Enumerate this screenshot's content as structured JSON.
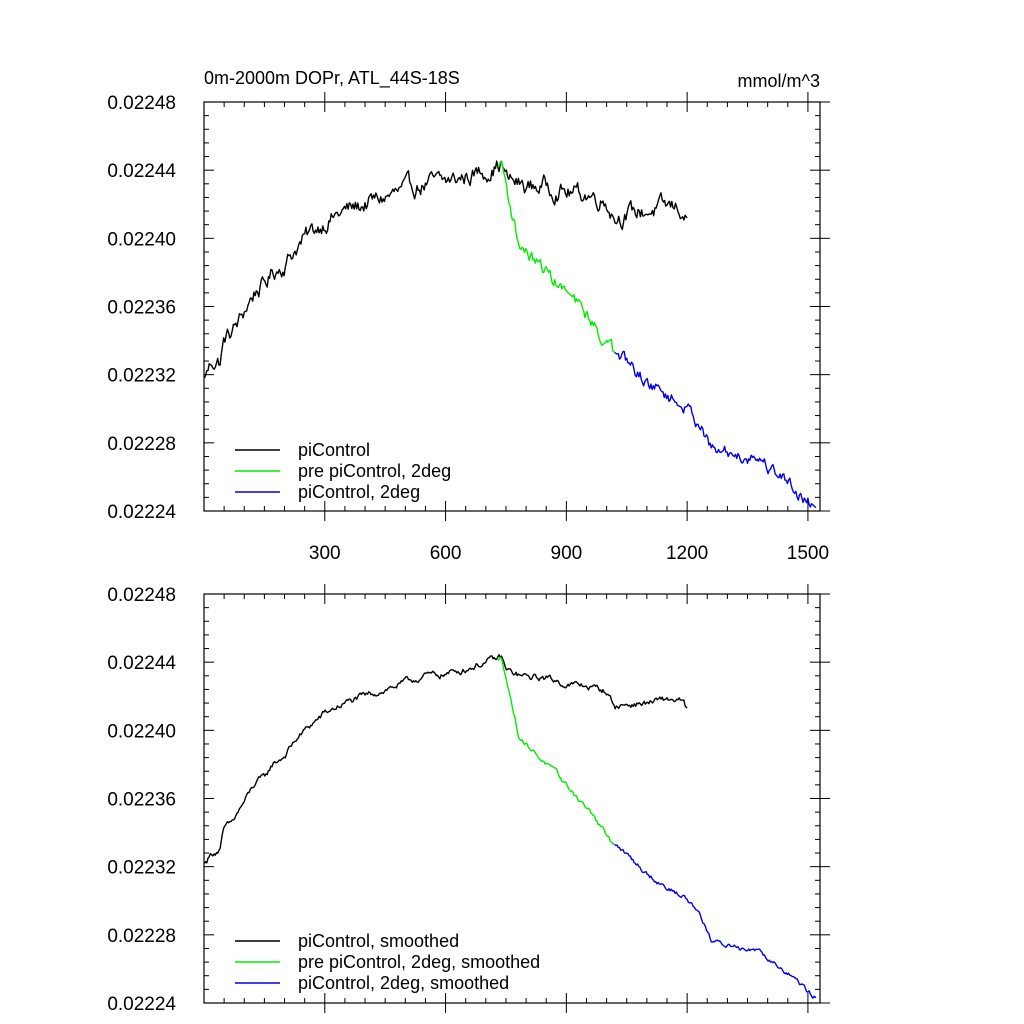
{
  "chart_data": [
    {
      "type": "line",
      "title": "0m-2000m DOPr, ATL_44S-18S",
      "units": "mmol/m^3",
      "xlim": [
        0,
        1530
      ],
      "ylim": [
        0.02224,
        0.02248
      ],
      "x_ticks": [
        300,
        600,
        900,
        1200,
        1500
      ],
      "x_tick_labels": [
        "300",
        "600",
        "900",
        "1200",
        "1500"
      ],
      "y_ticks": [
        0.02224,
        0.02228,
        0.02232,
        0.02236,
        0.0224,
        0.02244,
        0.02248
      ],
      "y_tick_labels": [
        "0.02224",
        "0.02228",
        "0.02232",
        "0.02236",
        "0.02240",
        "0.02244",
        "0.02248"
      ],
      "legend_position": "bottom-left",
      "series": [
        {
          "name": "piControl",
          "color": "#000000",
          "noise": 4e-06,
          "x": [
            1,
            20,
            40,
            50,
            70,
            90,
            110,
            130,
            150,
            170,
            200,
            230,
            260,
            300,
            350,
            400,
            450,
            500,
            550,
            600,
            650,
            700,
            730,
            740,
            750,
            800,
            850,
            900,
            950,
            1000,
            1020,
            1050,
            1100,
            1150,
            1180,
            1200
          ],
          "y": [
            0.022318,
            0.022328,
            0.022328,
            0.02234,
            0.022345,
            0.022352,
            0.022362,
            0.02237,
            0.022372,
            0.02238,
            0.022385,
            0.022395,
            0.022402,
            0.02241,
            0.022416,
            0.02242,
            0.022424,
            0.022428,
            0.022432,
            0.022433,
            0.022436,
            0.02244,
            0.022443,
            0.022444,
            0.022435,
            0.02243,
            0.022431,
            0.022427,
            0.022426,
            0.022422,
            0.022413,
            0.022414,
            0.022416,
            0.022418,
            0.022418,
            0.022412
          ]
        },
        {
          "name": "pre piControl, 2deg",
          "color": "#00ee00",
          "noise": 3e-06,
          "x": [
            730,
            740,
            750,
            760,
            770,
            780,
            800,
            830,
            860,
            900,
            930,
            960,
            980,
            1000,
            1010,
            1020
          ],
          "y": [
            0.022442,
            0.022444,
            0.022432,
            0.02242,
            0.02241,
            0.022398,
            0.022392,
            0.022385,
            0.022378,
            0.022368,
            0.02236,
            0.022352,
            0.022345,
            0.022338,
            0.022335,
            0.022333
          ]
        },
        {
          "name": "piControl, 2deg",
          "color": "#0000ee",
          "noise": 3e-06,
          "x": [
            1020,
            1060,
            1100,
            1150,
            1200,
            1230,
            1250,
            1260,
            1280,
            1300,
            1320,
            1340,
            1360,
            1380,
            1400,
            1430,
            1460,
            1490,
            1520
          ],
          "y": [
            0.022333,
            0.022325,
            0.022316,
            0.022308,
            0.0223,
            0.022292,
            0.022282,
            0.022275,
            0.022275,
            0.022274,
            0.022274,
            0.022272,
            0.022272,
            0.022272,
            0.022266,
            0.022262,
            0.022255,
            0.022248,
            0.022242
          ]
        }
      ]
    },
    {
      "type": "line",
      "xlim": [
        0,
        1530
      ],
      "ylim": [
        0.02224,
        0.02248
      ],
      "x_ticks": [
        300,
        600,
        900,
        1200,
        1500
      ],
      "y_ticks": [
        0.02224,
        0.02228,
        0.02232,
        0.02236,
        0.0224,
        0.02244,
        0.02248
      ],
      "y_tick_labels": [
        "0.02224",
        "0.02228",
        "0.02232",
        "0.02236",
        "0.02240",
        "0.02244",
        "0.02248"
      ],
      "legend_position": "bottom-left",
      "series": [
        {
          "name": "piControl, smoothed",
          "color": "#000000",
          "noise": 1.5e-06,
          "x": [
            1,
            20,
            40,
            50,
            70,
            90,
            110,
            130,
            150,
            170,
            200,
            230,
            260,
            300,
            350,
            400,
            450,
            500,
            550,
            600,
            650,
            700,
            730,
            740,
            750,
            800,
            850,
            900,
            950,
            1000,
            1020,
            1050,
            1100,
            1150,
            1180,
            1200
          ],
          "y": [
            0.022322,
            0.022328,
            0.02233,
            0.022342,
            0.022346,
            0.022354,
            0.022362,
            0.02237,
            0.022372,
            0.02238,
            0.022385,
            0.022395,
            0.022402,
            0.02241,
            0.022416,
            0.02242,
            0.022424,
            0.022428,
            0.022432,
            0.022433,
            0.022436,
            0.02244,
            0.022442,
            0.022443,
            0.022435,
            0.022431,
            0.022431,
            0.022427,
            0.022426,
            0.022423,
            0.022414,
            0.022415,
            0.022416,
            0.022418,
            0.022418,
            0.022413
          ]
        },
        {
          "name": "pre piControl, 2deg, smoothed",
          "color": "#00ee00",
          "noise": 1.2e-06,
          "x": [
            730,
            740,
            750,
            760,
            770,
            780,
            800,
            830,
            860,
            900,
            930,
            960,
            980,
            1000,
            1010,
            1020
          ],
          "y": [
            0.022441,
            0.022443,
            0.022432,
            0.02242,
            0.02241,
            0.022398,
            0.022392,
            0.022385,
            0.022378,
            0.022368,
            0.02236,
            0.022352,
            0.022345,
            0.022338,
            0.022334,
            0.022333
          ]
        },
        {
          "name": "piControl, 2deg, smoothed",
          "color": "#0000ee",
          "noise": 1.2e-06,
          "x": [
            1020,
            1060,
            1100,
            1150,
            1200,
            1230,
            1250,
            1260,
            1280,
            1300,
            1320,
            1340,
            1360,
            1380,
            1400,
            1430,
            1460,
            1490,
            1520
          ],
          "y": [
            0.022333,
            0.022325,
            0.022316,
            0.022308,
            0.022301,
            0.022293,
            0.022283,
            0.022276,
            0.022275,
            0.022274,
            0.022274,
            0.022272,
            0.022272,
            0.022272,
            0.022267,
            0.022262,
            0.022256,
            0.022249,
            0.022243
          ]
        }
      ]
    }
  ]
}
